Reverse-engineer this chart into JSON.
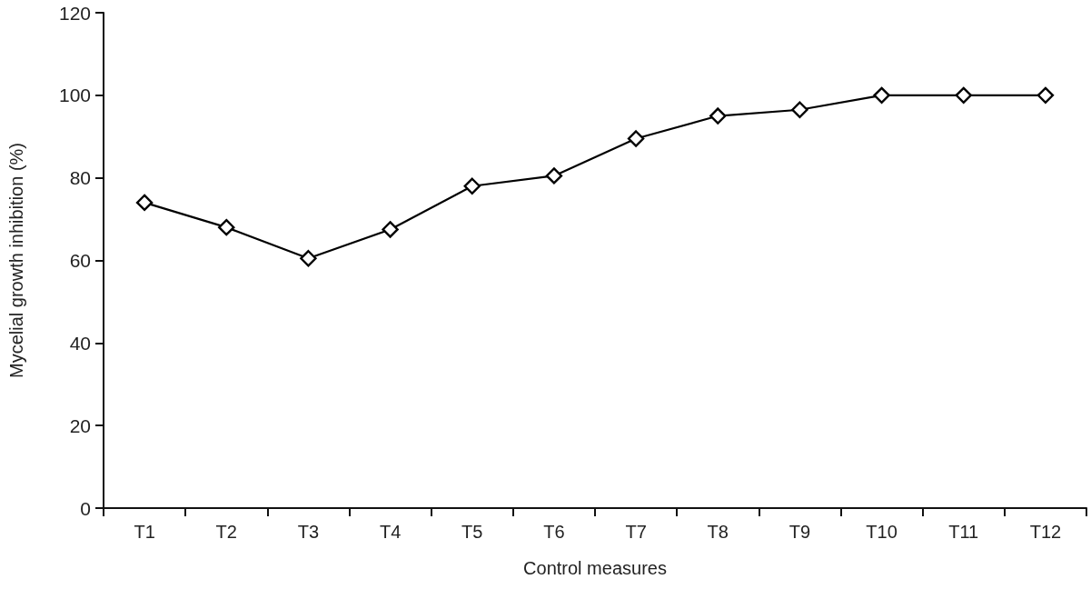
{
  "chart_data": {
    "type": "line",
    "xlabel": "Control measures",
    "ylabel": "Mycelial growth inhibition (%)",
    "categories": [
      "T1",
      "T2",
      "T3",
      "T4",
      "T5",
      "T6",
      "T7",
      "T8",
      "T9",
      "T10",
      "T11",
      "T12"
    ],
    "values": [
      74,
      68,
      60.5,
      67.5,
      78,
      80.5,
      89.5,
      95,
      96.5,
      100,
      100,
      100
    ],
    "color": "#000000",
    "ylim": [
      0,
      120
    ],
    "yticks": [
      0,
      20,
      40,
      60,
      80,
      100,
      120
    ],
    "grid": false,
    "marker": "diamond",
    "line_style": "solid"
  }
}
